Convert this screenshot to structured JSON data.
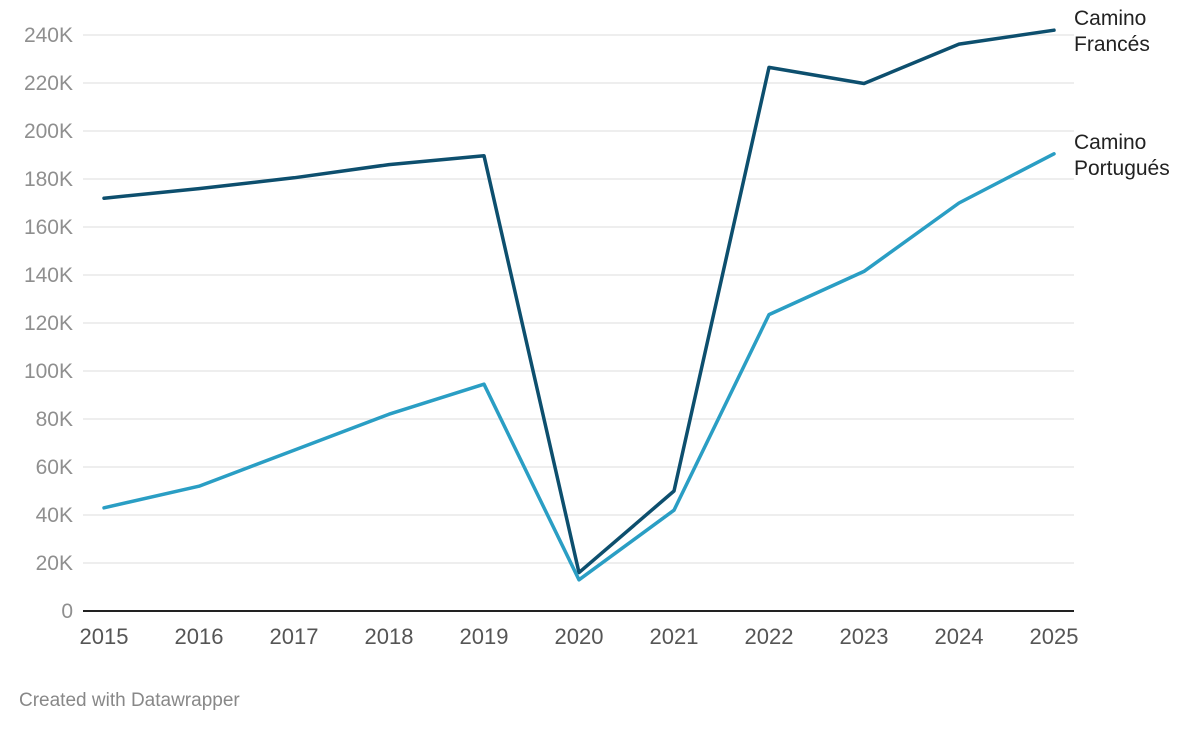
{
  "chart_data": {
    "type": "line",
    "title": "",
    "xlabel": "",
    "ylabel": "",
    "x": [
      2015,
      2016,
      2017,
      2018,
      2019,
      2020,
      2021,
      2022,
      2023,
      2024,
      2025
    ],
    "ylim": [
      0,
      240000
    ],
    "y_ticks": [
      {
        "value": 0,
        "label": "0"
      },
      {
        "value": 20000,
        "label": "20K"
      },
      {
        "value": 40000,
        "label": "40K"
      },
      {
        "value": 60000,
        "label": "60K"
      },
      {
        "value": 80000,
        "label": "80K"
      },
      {
        "value": 100000,
        "label": "100K"
      },
      {
        "value": 120000,
        "label": "120K"
      },
      {
        "value": 140000,
        "label": "140K"
      },
      {
        "value": 160000,
        "label": "160K"
      },
      {
        "value": 180000,
        "label": "180K"
      },
      {
        "value": 200000,
        "label": "200K"
      },
      {
        "value": 220000,
        "label": "220K"
      },
      {
        "value": 240000,
        "label": "240K"
      }
    ],
    "grid": true,
    "series": [
      {
        "name": "Camino Francés",
        "label_lines": [
          "Camino",
          "Francés"
        ],
        "color": "#0d4f6e",
        "values": [
          172000,
          176000,
          180500,
          186000,
          189700,
          16000,
          50000,
          226500,
          219800,
          236200,
          242000
        ]
      },
      {
        "name": "Camino Portugués",
        "label_lines": [
          "Camino",
          "Portugués"
        ],
        "color": "#2a9ec4",
        "values": [
          43000,
          52000,
          67000,
          82000,
          94500,
          13000,
          42000,
          123500,
          141500,
          170000,
          190500
        ]
      }
    ]
  },
  "footer": {
    "credit": "Created with Datawrapper"
  }
}
